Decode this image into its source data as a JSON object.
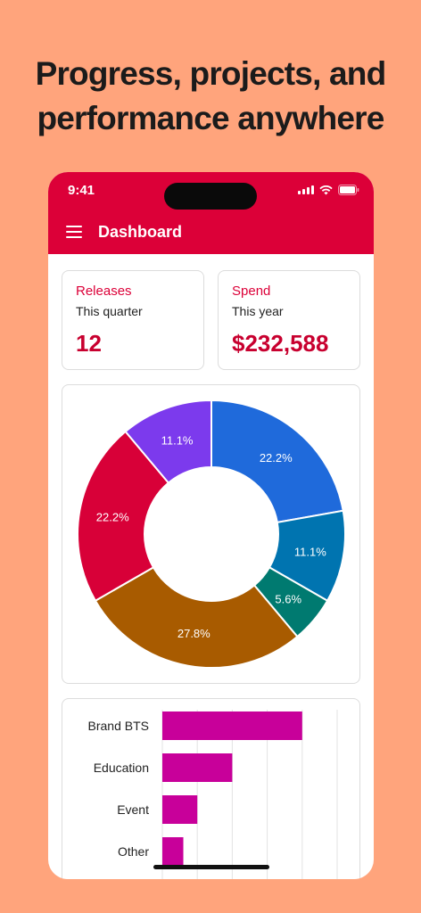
{
  "headline": "Progress, projects, and performance anywhere",
  "status_bar": {
    "time": "9:41"
  },
  "app_bar": {
    "title": "Dashboard"
  },
  "kpis": [
    {
      "title": "Releases",
      "subtitle": "This quarter",
      "value": "12"
    },
    {
      "title": "Spend",
      "subtitle": "This year",
      "value": "$232,588"
    }
  ],
  "colors": {
    "brand": "#DC0038",
    "background": "#FFA47C",
    "bar": "#C8009A"
  },
  "chart_data": [
    {
      "type": "pie",
      "donut": true,
      "slices": [
        {
          "value": 22.2,
          "label": "22.2%",
          "color": "#1F6ADB"
        },
        {
          "value": 11.1,
          "label": "11.1%",
          "color": "#0074B0"
        },
        {
          "value": 5.6,
          "label": "5.6%",
          "color": "#007A70"
        },
        {
          "value": 27.8,
          "label": "27.8%",
          "color": "#A85B00"
        },
        {
          "value": 22.2,
          "label": "22.2%",
          "color": "#D80038"
        },
        {
          "value": 11.1,
          "label": "11.1%",
          "color": "#7C3AED"
        }
      ]
    },
    {
      "type": "bar",
      "orientation": "horizontal",
      "categories": [
        "Brand BTS",
        "Education",
        "Event",
        "Other"
      ],
      "values": [
        4,
        2,
        1,
        0.6
      ],
      "xlim": [
        0,
        5
      ],
      "grid": true
    }
  ]
}
